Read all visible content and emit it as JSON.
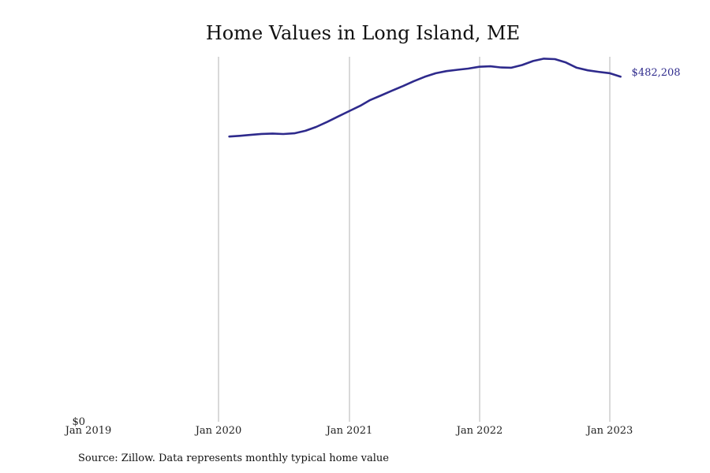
{
  "chart_data": {
    "type": "line",
    "title": "Home Values in Long Island, ME",
    "xlabel": "",
    "ylabel": "",
    "x_ticks": [
      "Jan 2019",
      "Jan 2020",
      "Jan 2021",
      "Jan 2022",
      "Jan 2023"
    ],
    "x_tick_dates": [
      "2019-01-01",
      "2020-01-01",
      "2021-01-01",
      "2022-01-01",
      "2023-01-01"
    ],
    "y_ticks": [
      {
        "value": 0,
        "label": "$0"
      }
    ],
    "ylim": [
      0,
      510000
    ],
    "xlim": [
      "2019-01-01",
      "2023-07-15"
    ],
    "grid": "vertical",
    "line_color": "#2e2a8c",
    "end_label": "$482,208",
    "series": [
      {
        "x": [
          "2020-01-31",
          "2020-02-29",
          "2020-03-31",
          "2020-04-30",
          "2020-05-31",
          "2020-06-30",
          "2020-07-31",
          "2020-08-31",
          "2020-09-30",
          "2020-10-31",
          "2020-11-30",
          "2020-12-31",
          "2021-01-31",
          "2021-02-28",
          "2021-03-31",
          "2021-04-30",
          "2021-05-31",
          "2021-06-30",
          "2021-07-31",
          "2021-08-31",
          "2021-09-30",
          "2021-10-31",
          "2021-11-30",
          "2021-12-31",
          "2022-01-31",
          "2022-02-28",
          "2022-03-31",
          "2022-04-30",
          "2022-05-31",
          "2022-06-30",
          "2022-07-31",
          "2022-08-31",
          "2022-09-30",
          "2022-10-31",
          "2022-11-30",
          "2022-12-31",
          "2023-01-31"
        ],
        "values": [
          398500,
          399500,
          400800,
          402200,
          402700,
          402000,
          403000,
          406600,
          412000,
          419000,
          426500,
          434000,
          441500,
          449500,
          456000,
          462500,
          469000,
          475700,
          482000,
          487000,
          490000,
          491800,
          493500,
          496000,
          496700,
          495100,
          494700,
          498400,
          504000,
          507400,
          506700,
          502000,
          494700,
          491000,
          489000,
          487100,
          482208
        ]
      }
    ],
    "source": "Source: Zillow. Data represents monthly typical home value"
  }
}
